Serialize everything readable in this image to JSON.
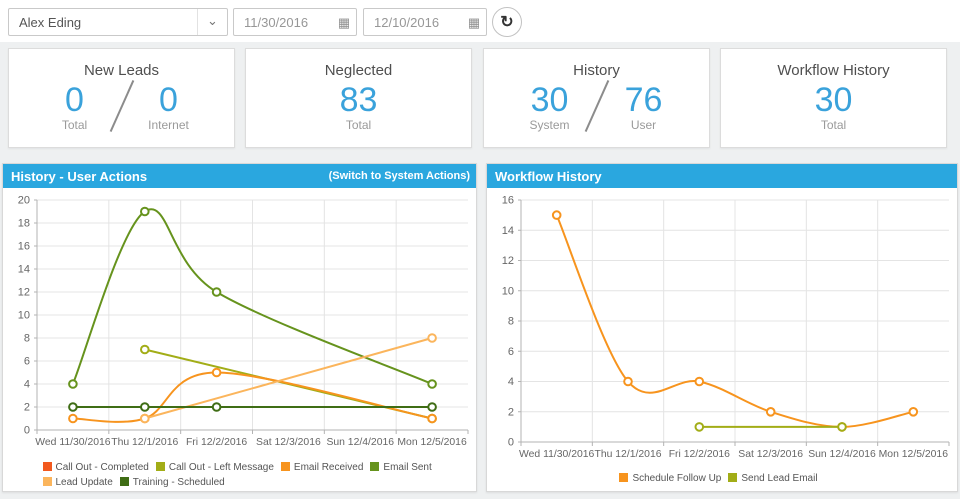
{
  "toolbar": {
    "user_select_value": "Alex Eding",
    "start_date": "11/30/2016",
    "end_date": "12/10/2016",
    "icons": {
      "dropdown": "⌄",
      "calendar": "▦",
      "refresh": "↻"
    }
  },
  "summary_cards": [
    {
      "title": "New Leads",
      "values": [
        {
          "number": "0",
          "label": "Total"
        },
        {
          "number": "0",
          "label": "Internet"
        }
      ]
    },
    {
      "title": "Neglected",
      "values": [
        {
          "number": "83",
          "label": "Total"
        }
      ]
    },
    {
      "title": "History",
      "values": [
        {
          "number": "30",
          "label": "System"
        },
        {
          "number": "76",
          "label": "User"
        }
      ]
    },
    {
      "title": "Workflow History",
      "values": [
        {
          "number": "30",
          "label": "Total"
        }
      ]
    }
  ],
  "chart_data": [
    {
      "type": "line",
      "title": "History - User Actions",
      "header_action": "(Switch to System Actions)",
      "x_labels": [
        "Wed 11/30/2016",
        "Thu 12/1/2016",
        "Fri 12/2/2016",
        "Sat 12/3/2016",
        "Sun 12/4/2016",
        "Mon 12/5/2016"
      ],
      "ylim": [
        0,
        20
      ],
      "ytick": 2,
      "grid": true,
      "legend_position": "bottom",
      "series": [
        {
          "name": "Call Out - Completed",
          "color": "#f2591e",
          "points": []
        },
        {
          "name": "Call Out - Left Message",
          "color": "#a2ad17",
          "points": [
            [
              1,
              7
            ],
            [
              5,
              1
            ]
          ]
        },
        {
          "name": "Email Received",
          "color": "#f7941e",
          "points": [
            [
              0,
              1
            ],
            [
              1,
              1
            ],
            [
              2,
              5
            ],
            [
              5,
              1
            ]
          ]
        },
        {
          "name": "Email Sent",
          "color": "#66931d",
          "points": [
            [
              0,
              4
            ],
            [
              1,
              19
            ],
            [
              2,
              12
            ],
            [
              5,
              4
            ]
          ]
        },
        {
          "name": "Lead Update",
          "color": "#fbb55c",
          "points": [
            [
              1,
              1
            ],
            [
              5,
              8
            ]
          ]
        },
        {
          "name": "Training - Scheduled",
          "color": "#3f6d15",
          "points": [
            [
              0,
              2
            ],
            [
              1,
              2
            ],
            [
              2,
              2
            ],
            [
              5,
              2
            ]
          ]
        }
      ]
    },
    {
      "type": "line",
      "title": "Workflow History",
      "x_labels": [
        "Wed 11/30/2016",
        "Thu 12/1/2016",
        "Fri 12/2/2016",
        "Sat 12/3/2016",
        "Sun 12/4/2016",
        "Mon 12/5/2016"
      ],
      "ylim": [
        0,
        16
      ],
      "ytick": 2,
      "grid": true,
      "legend_position": "bottom",
      "series": [
        {
          "name": "Schedule Follow Up",
          "color": "#f7941e",
          "points": [
            [
              0,
              15
            ],
            [
              1,
              4
            ],
            [
              2,
              4
            ],
            [
              3,
              2
            ],
            [
              4,
              1
            ],
            [
              5,
              2
            ]
          ]
        },
        {
          "name": "Send Lead Email",
          "color": "#a2ad17",
          "points": [
            [
              2,
              1
            ],
            [
              4,
              1
            ]
          ]
        }
      ]
    }
  ]
}
